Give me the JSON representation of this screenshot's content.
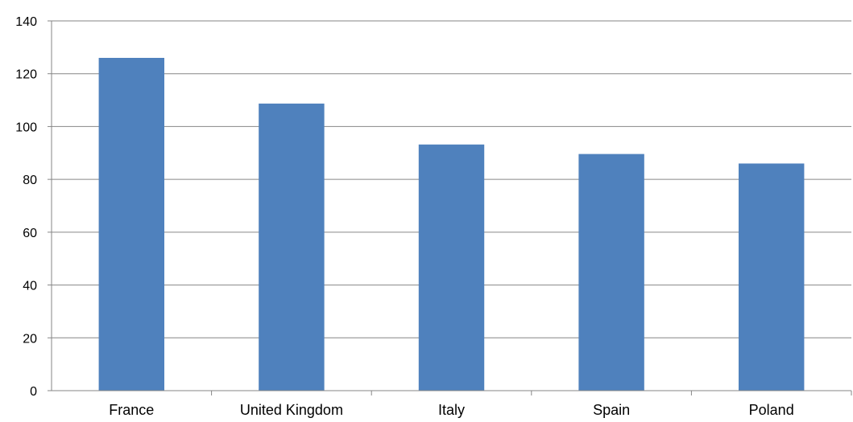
{
  "chart_data": {
    "type": "bar",
    "categories": [
      "France",
      "United Kingdom",
      "Italy",
      "Spain",
      "Poland"
    ],
    "values": [
      126,
      108.7,
      93.2,
      89.6,
      86
    ],
    "title": "",
    "xlabel": "",
    "ylabel": "",
    "ylim": [
      0,
      140
    ],
    "yticks": [
      "0",
      "20",
      "40",
      "60",
      "80",
      "100",
      "120",
      "140"
    ],
    "grid": true,
    "legend": "none",
    "colors": {
      "bar": "#4f81bd",
      "grid": "#868686",
      "axis": "#868686"
    }
  }
}
